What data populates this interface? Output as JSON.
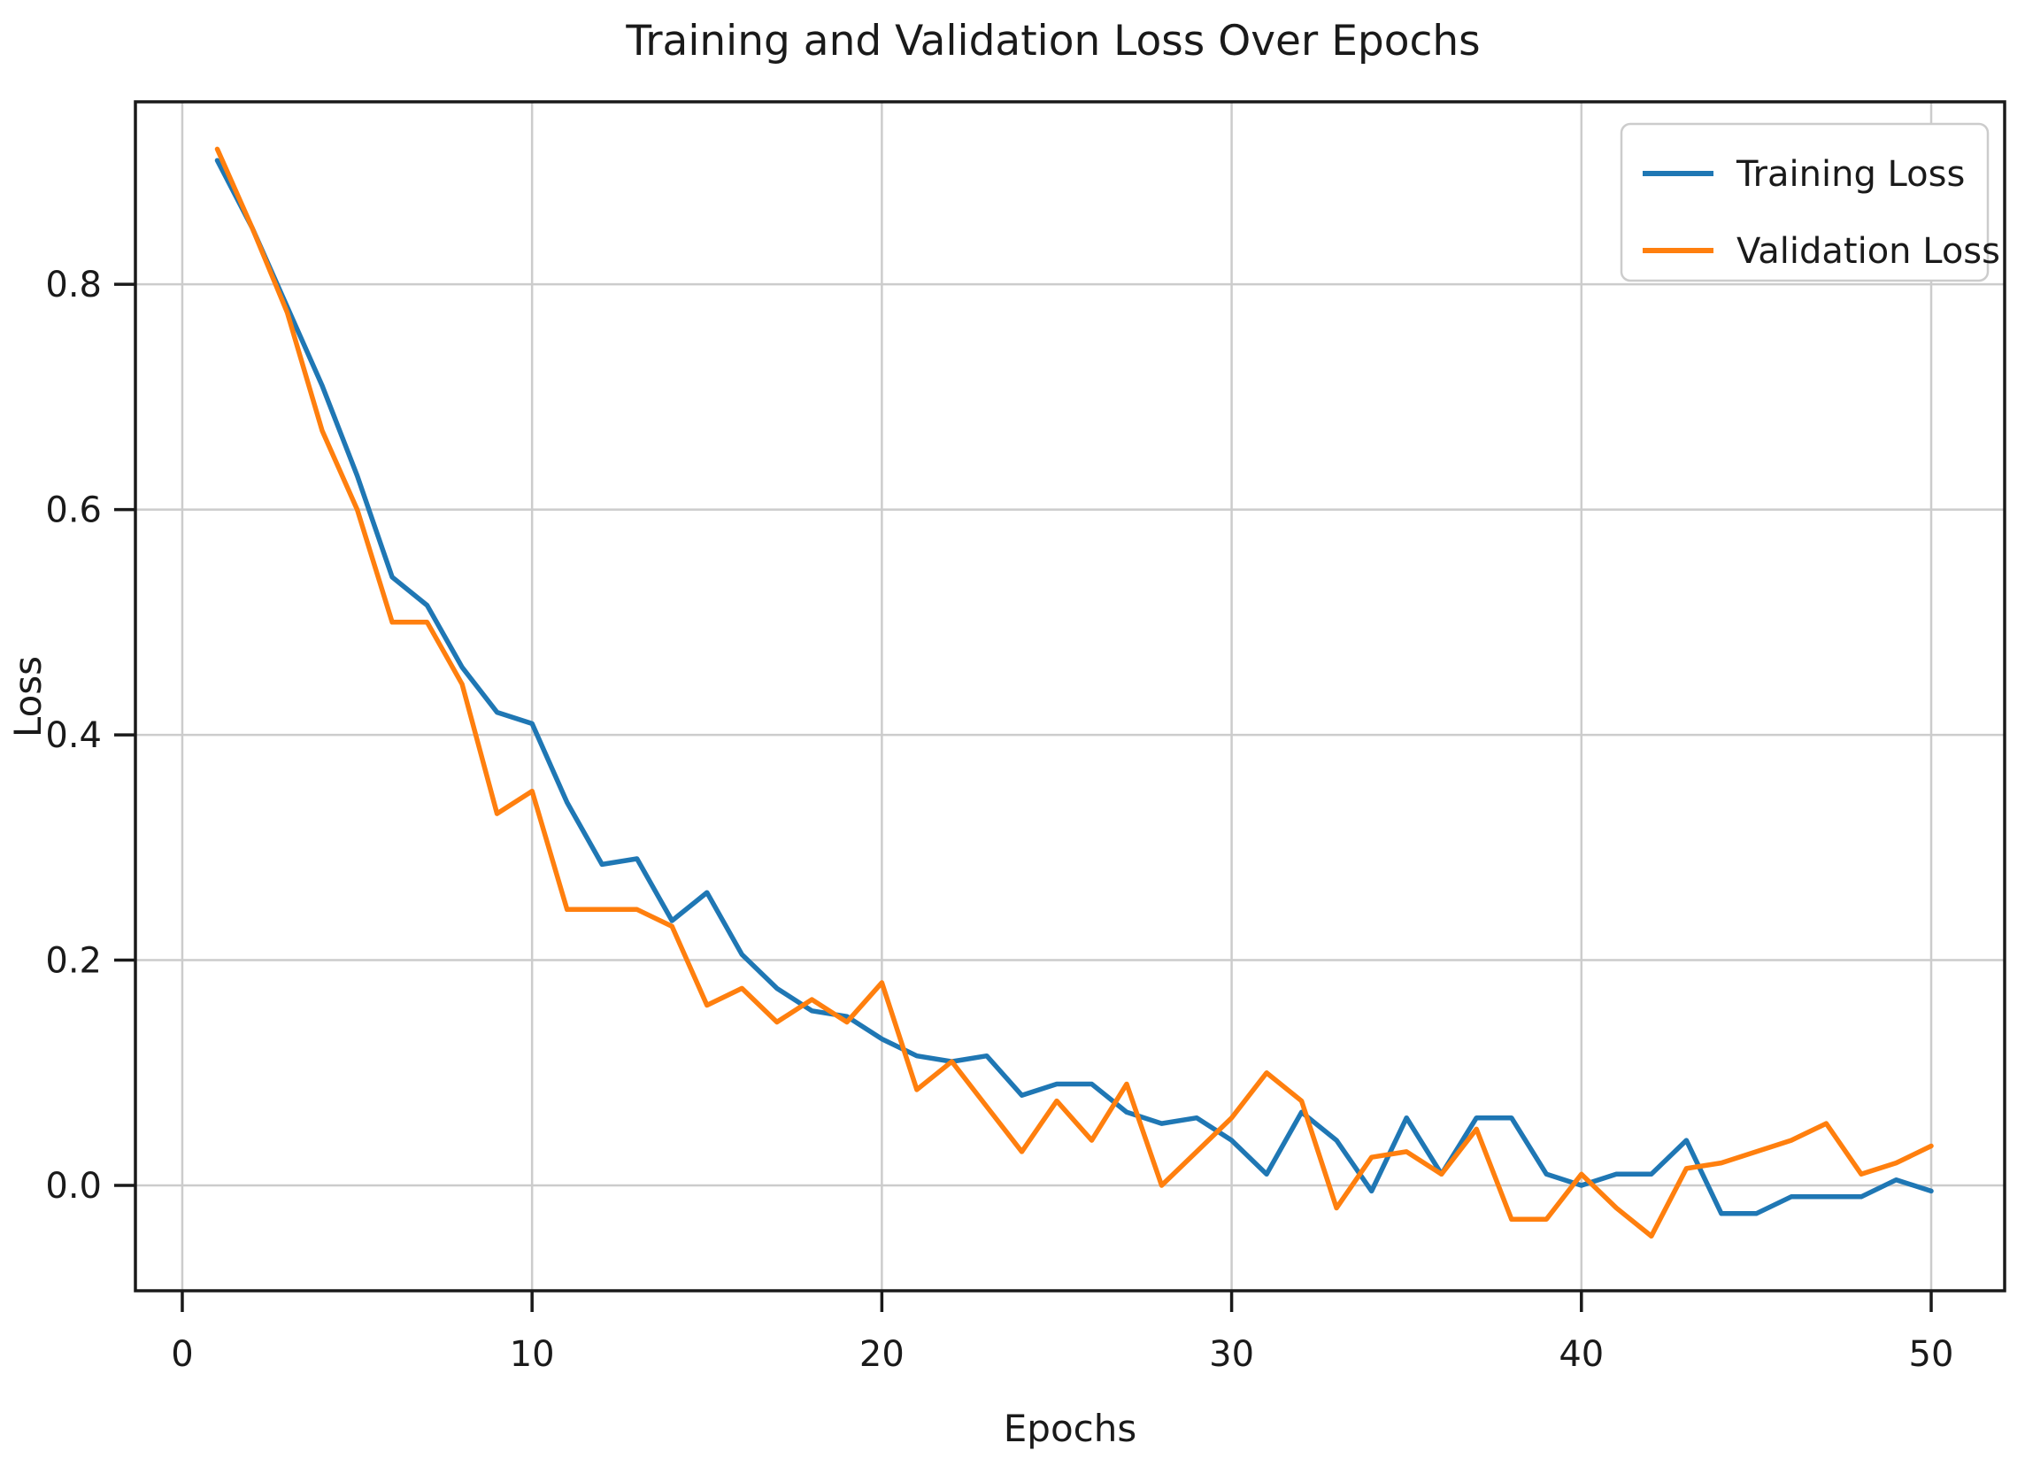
{
  "chart_data": {
    "type": "line",
    "title": "Training and Validation Loss Over Epochs",
    "xlabel": "Epochs",
    "ylabel": "Loss",
    "grid": true,
    "legend_position": "upper right",
    "xlim": [
      -1.34,
      52.1
    ],
    "ylim": [
      -0.0935,
      0.962
    ],
    "xtick_values": [
      0,
      10,
      20,
      30,
      40,
      50
    ],
    "xtick_labels": [
      "0",
      "10",
      "20",
      "30",
      "40",
      "50"
    ],
    "ytick_values": [
      0.0,
      0.2,
      0.4,
      0.6,
      0.8
    ],
    "ytick_labels": [
      "0.0",
      "0.2",
      "0.4",
      "0.6",
      "0.8"
    ],
    "x": [
      1,
      2,
      3,
      4,
      5,
      6,
      7,
      8,
      9,
      10,
      11,
      12,
      13,
      14,
      15,
      16,
      17,
      18,
      19,
      20,
      21,
      22,
      23,
      24,
      25,
      26,
      27,
      28,
      29,
      30,
      31,
      32,
      33,
      34,
      35,
      36,
      37,
      38,
      39,
      40,
      41,
      42,
      43,
      44,
      45,
      46,
      47,
      48,
      49,
      50
    ],
    "series": [
      {
        "name": "Training Loss",
        "color": "#1f77b4",
        "values": [
          0.91,
          0.85,
          0.78,
          0.71,
          0.63,
          0.54,
          0.515,
          0.46,
          0.42,
          0.41,
          0.34,
          0.285,
          0.29,
          0.235,
          0.26,
          0.205,
          0.175,
          0.155,
          0.15,
          0.13,
          0.115,
          0.11,
          0.115,
          0.08,
          0.09,
          0.09,
          0.065,
          0.055,
          0.06,
          0.04,
          0.01,
          0.065,
          0.04,
          -0.005,
          0.06,
          0.01,
          0.06,
          0.06,
          0.01,
          0.0,
          0.01,
          0.01,
          0.04,
          -0.025,
          -0.025,
          -0.01,
          -0.01,
          -0.01,
          0.005,
          -0.005
        ]
      },
      {
        "name": "Validation Loss",
        "color": "#ff7f0e",
        "values": [
          0.92,
          0.85,
          0.775,
          0.67,
          0.6,
          0.5,
          0.5,
          0.445,
          0.33,
          0.35,
          0.245,
          0.245,
          0.245,
          0.23,
          0.16,
          0.175,
          0.145,
          0.165,
          0.145,
          0.18,
          0.085,
          0.11,
          0.07,
          0.03,
          0.075,
          0.04,
          0.09,
          0.0,
          0.03,
          0.06,
          0.1,
          0.075,
          -0.02,
          0.025,
          0.03,
          0.01,
          0.05,
          -0.03,
          -0.03,
          0.01,
          -0.02,
          -0.045,
          0.015,
          0.02,
          0.03,
          0.04,
          0.055,
          0.01,
          0.02,
          0.035
        ]
      }
    ],
    "colors": {
      "grid": "#cccccc",
      "spine": "#1a1a1a",
      "background": "#ffffff",
      "legend_border": "#cccccc"
    }
  }
}
